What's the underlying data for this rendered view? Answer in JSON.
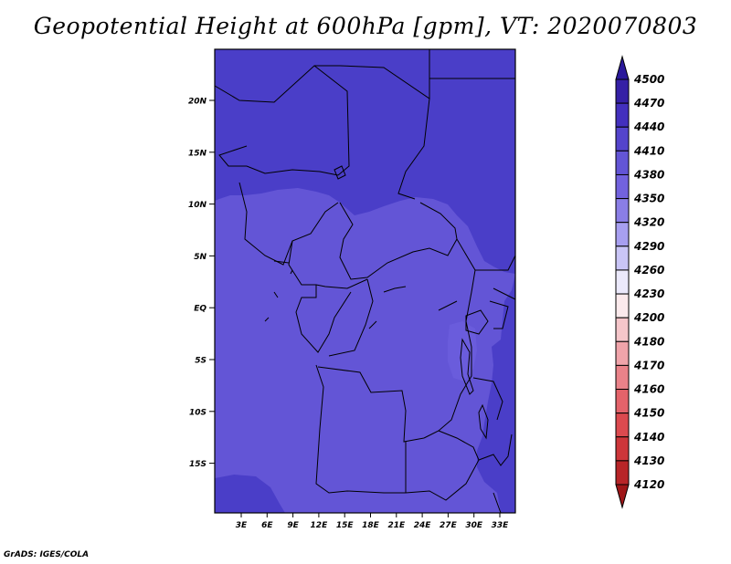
{
  "title": "Geopotential Height at 600hPa [gpm], VT: 2020070803",
  "credit": "GrADS: IGES/COLA",
  "map": {
    "lat_ticks": [
      "20N",
      "15N",
      "10N",
      "5N",
      "EQ",
      "5S",
      "10S",
      "15S"
    ],
    "lon_ticks": [
      "3E",
      "6E",
      "9E",
      "12E",
      "15E",
      "18E",
      "21E",
      "24E",
      "27E",
      "30E",
      "33E"
    ]
  },
  "colorbar": {
    "levels": [
      "4500",
      "4470",
      "4440",
      "4410",
      "4380",
      "4350",
      "4320",
      "4290",
      "4260",
      "4230",
      "4200",
      "4180",
      "4170",
      "4160",
      "4150",
      "4140",
      "4130",
      "4120"
    ],
    "colors": [
      "#2a189b",
      "#3520a6",
      "#4330be",
      "#5444cc",
      "#6355d6",
      "#7262de",
      "#8a7ee6",
      "#a79ff0",
      "#c9c5f6",
      "#ebe9fb",
      "#fbeaec",
      "#f5c6ca",
      "#f0a4aa",
      "#ea8289",
      "#e4636a",
      "#dc4a4f",
      "#cd363a",
      "#b82528",
      "#9f1618"
    ]
  }
}
